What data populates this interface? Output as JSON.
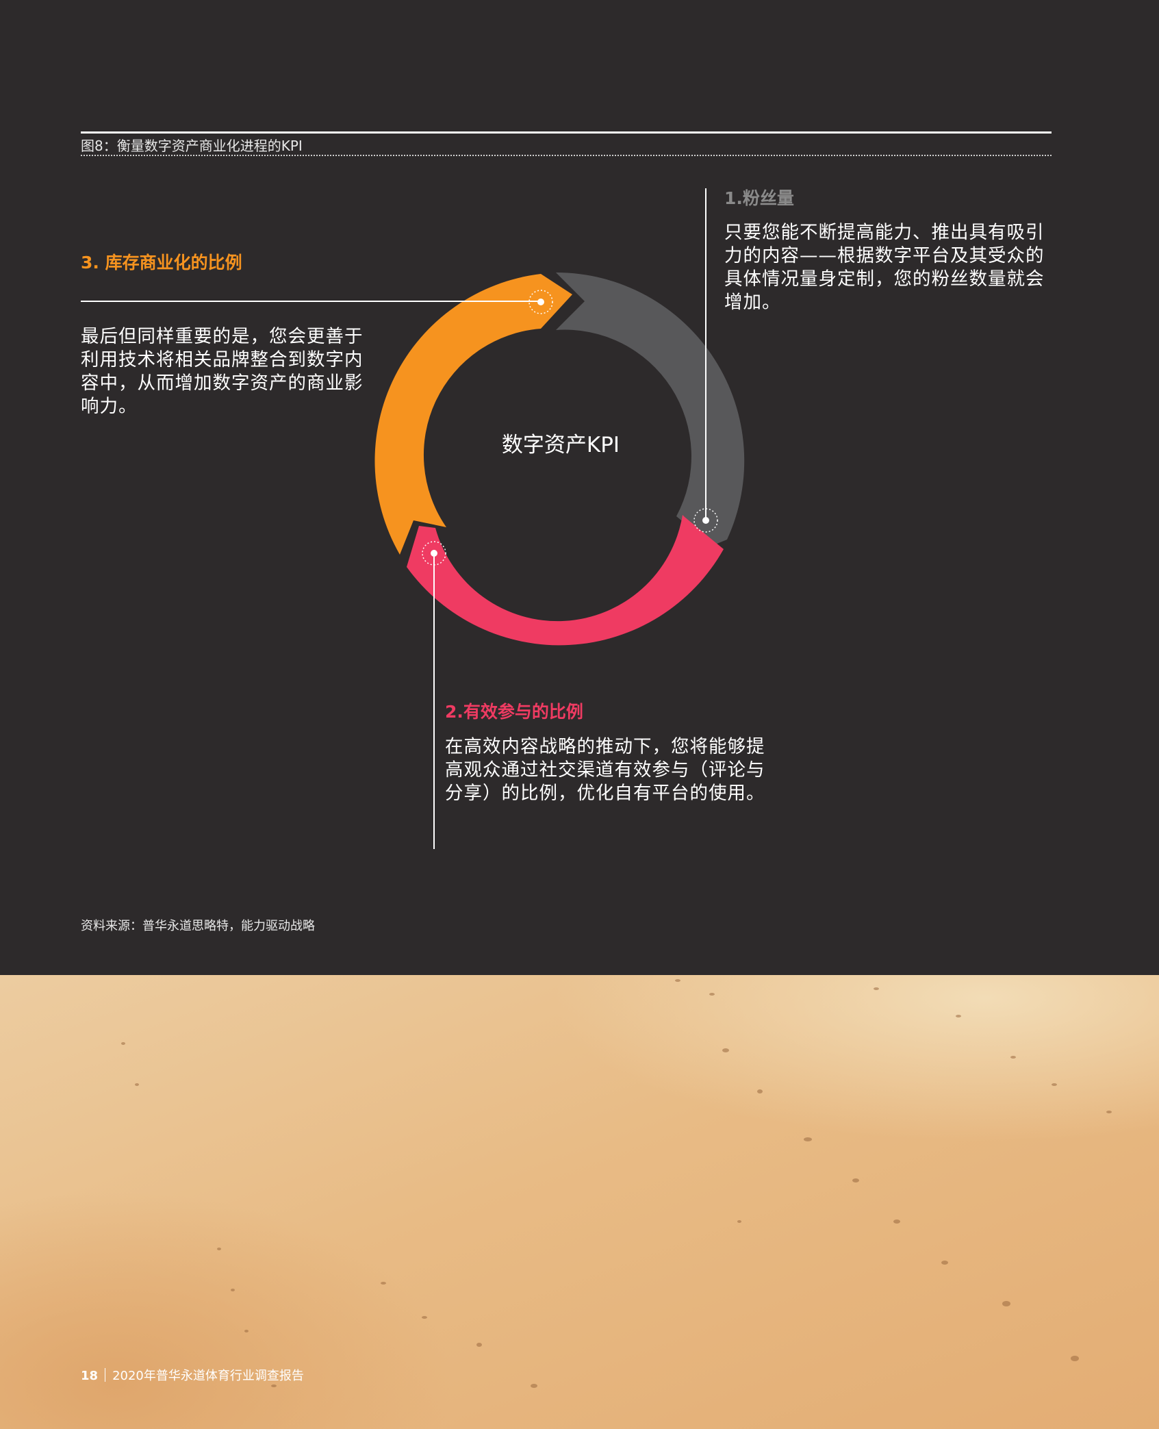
{
  "figure": {
    "title": "图8：衡量数字资产商业化进程的KPI",
    "center_label": "数字资产KPI",
    "source": "资料来源：普华永道思略特，能力驱动战略"
  },
  "kpis": [
    {
      "heading": "1.粉丝量",
      "text": "只要您能不断提高能力、推出具有吸引力的内容——根据数字平台及其受众的具体情况量身定制，您的粉丝数量就会增加。",
      "color": "#58585a"
    },
    {
      "heading": "2.有效参与的比例",
      "text": "在高效内容战略的推动下，您将能够提高观众通过社交渠道有效参与（评论与分享）的比例，优化自有平台的使用。",
      "color": "#ef3b62"
    },
    {
      "heading": "3. 库存商业化的比例",
      "text": "最后但同样重要的是，您会更善于利用技术将相关品牌整合到数字内容中，从而增加数字资产的商业影响力。",
      "color": "#f6931f"
    }
  ],
  "footer": {
    "page_number": "18",
    "report_title": "2020年普华永道体育行业调查报告"
  }
}
